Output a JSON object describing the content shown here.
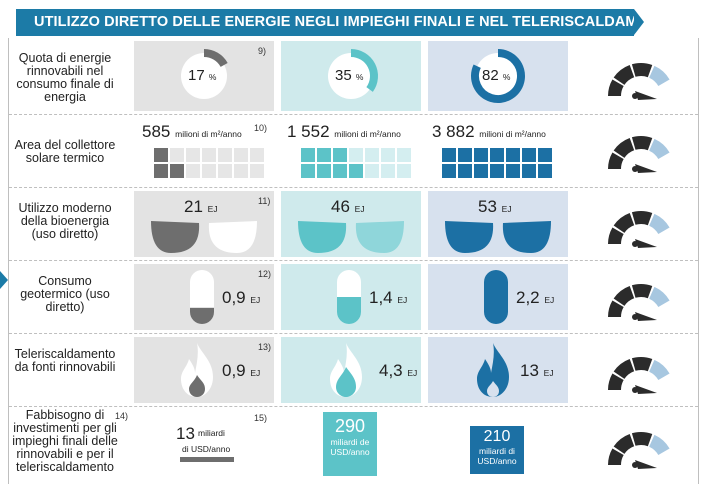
{
  "header": {
    "title": "UTILIZZO DIRETTO DELLE ENERGIE NEGLI IMPIEGHI FINALI E NEL TELERISCALDAMENTO"
  },
  "colors": {
    "grey": "#6e6e6e",
    "teal": "#5cc3c8",
    "blue": "#1c70a4",
    "banner": "#1c7ba7",
    "gauge_dark": "#2b2b2b",
    "gauge_light": "#a7c7e0"
  },
  "rows": [
    {
      "label": "Quota di energie rinnovabili nel consumo finale di energia",
      "note": "9)",
      "values": [
        {
          "value": "17",
          "unit": "%",
          "share": 0.17
        },
        {
          "value": "35",
          "unit": "%",
          "share": 0.35
        },
        {
          "value": "82",
          "unit": "%",
          "share": 0.82
        }
      ]
    },
    {
      "label": "Area del collettore solare termico",
      "note": "10)",
      "values": [
        {
          "value": "585",
          "unit": "milioni di m²/anno",
          "filled_squares": 3
        },
        {
          "value": "1 552",
          "unit": "milioni di m²/anno",
          "filled_squares": 7
        },
        {
          "value": "3 882",
          "unit": "milioni di m²/anno",
          "filled_squares": 14
        }
      ]
    },
    {
      "label": "Utilizzo moderno della bioenergia (uso diretto)",
      "note": "11)",
      "values": [
        {
          "value": "21",
          "unit": "EJ"
        },
        {
          "value": "46",
          "unit": "EJ"
        },
        {
          "value": "53",
          "unit": "EJ"
        }
      ]
    },
    {
      "label": "Consumo geotermico (uso diretto)",
      "note": "12)",
      "values": [
        {
          "value": "0,9",
          "unit": "EJ",
          "level": 0.3
        },
        {
          "value": "1,4",
          "unit": "EJ",
          "level": 0.5
        },
        {
          "value": "2,2",
          "unit": "EJ",
          "level": 1.0
        }
      ]
    },
    {
      "label": "Teleriscaldamento da fonti rinnovabili",
      "note": "13)",
      "values": [
        {
          "value": "0,9",
          "unit": "EJ"
        },
        {
          "value": "4,3",
          "unit": "EJ"
        },
        {
          "value": "13",
          "unit": "EJ"
        }
      ]
    },
    {
      "label": "Fabbisogno di investimenti per gli impieghi finali delle rinnovabili e per il teleriscaldamento",
      "label_note": "14)",
      "note": "15)",
      "values": [
        {
          "value": "13",
          "unit_line1": "miliardi",
          "unit_line2": "di USD/anno"
        },
        {
          "value": "290",
          "unit_line1": "miliardi de",
          "unit_line2": "USD/anno"
        },
        {
          "value": "210",
          "unit_line1": "miliardi di",
          "unit_line2": "USD/anno"
        }
      ]
    }
  ]
}
